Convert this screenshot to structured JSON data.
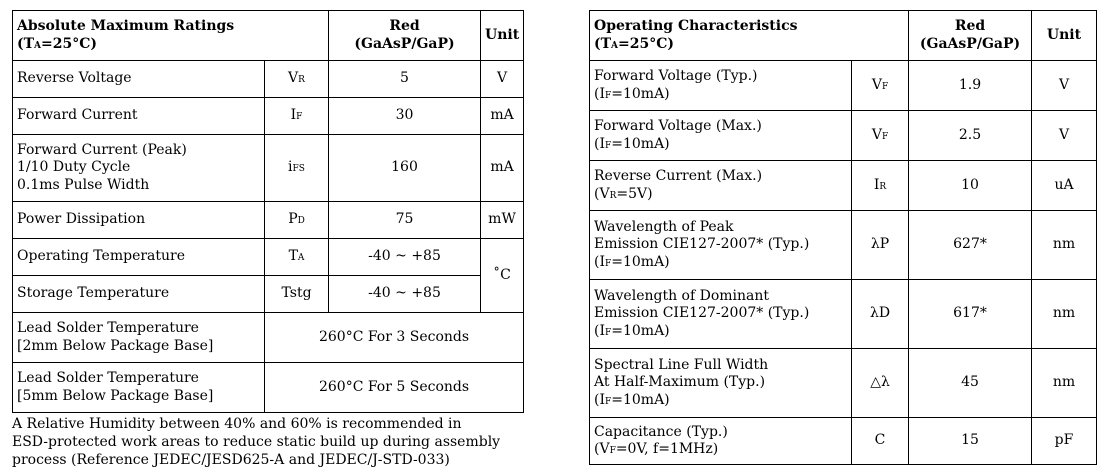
{
  "left": {
    "title": "Absolute Maximum Ratings",
    "cond_pre": "(T",
    "cond_sub": "A",
    "cond_post": "=25°C)",
    "col_red_1": "Red",
    "col_red_2": "(GaAsP/GaP)",
    "col_unit": "Unit",
    "rows": [
      {
        "param": "Reverse Voltage",
        "sym": "V",
        "sym_sub": "R",
        "value": "5",
        "unit": "V"
      },
      {
        "param": "Forward Current",
        "sym": "I",
        "sym_sub": "F",
        "value": "30",
        "unit": "mA"
      },
      {
        "param_1": "Forward Current (Peak)",
        "param_2": "1/10 Duty Cycle",
        "param_3": "0.1ms Pulse Width",
        "sym": "i",
        "sym_sub": "FS",
        "value": "160",
        "unit": "mA"
      },
      {
        "param": "Power Dissipation",
        "sym": "P",
        "sym_sub": "D",
        "value": "75",
        "unit": "mW"
      },
      {
        "param": "Operating Temperature",
        "sym": "T",
        "sym_sub": "A",
        "value": "-40 ~ +85"
      },
      {
        "param": "Storage Temperature",
        "sym": "Tstg",
        "value": "-40 ~ +85"
      },
      {
        "param_1": "Lead Solder Temperature",
        "param_2": "[2mm Below Package Base]",
        "value": "260°C For 3 Seconds"
      },
      {
        "param_1": "Lead Solder Temperature",
        "param_2": "[5mm Below Package Base]",
        "value": "260°C For 5 Seconds"
      }
    ],
    "temp_unit": "˚C"
  },
  "note": {
    "line_1": "A Relative Humidity between 40% and 60% is recommended in",
    "line_2": "ESD-protected work areas to reduce static build up during assembly",
    "line_3": "process (Reference JEDEC/JESD625-A and JEDEC/J-STD-033)"
  },
  "right": {
    "title": "Operating Characteristics",
    "cond_pre": "(T",
    "cond_sub": "A",
    "cond_post": "=25°C)",
    "col_red_1": "Red",
    "col_red_2": "(GaAsP/GaP)",
    "col_unit": "Unit",
    "rows": [
      {
        "param_1": "Forward Voltage (Typ.)",
        "cond_pre": "(I",
        "cond_sub": "F",
        "cond_post": "=10mA)",
        "sym": "V",
        "sym_sub": "F",
        "value": "1.9",
        "unit": "V"
      },
      {
        "param_1": "Forward Voltage (Max.)",
        "cond_pre": "(I",
        "cond_sub": "F",
        "cond_post": "=10mA)",
        "sym": "V",
        "sym_sub": "F",
        "value": "2.5",
        "unit": "V"
      },
      {
        "param_1": "Reverse Current (Max.)",
        "cond_pre": "(V",
        "cond_sub": "R",
        "cond_post": "=5V)",
        "sym": "I",
        "sym_sub": "R",
        "value": "10",
        "unit": "uA"
      },
      {
        "param_1": "Wavelength of Peak",
        "param_2": "Emission  CIE127-2007* (Typ.)",
        "cond_pre": "(I",
        "cond_sub": "F",
        "cond_post": "=10mA)",
        "sym": "λP",
        "value": "627*",
        "unit": "nm"
      },
      {
        "param_1": "Wavelength of Dominant",
        "param_2": "Emission  CIE127-2007* (Typ.)",
        "cond_pre": "(I",
        "cond_sub": "F",
        "cond_post": "=10mA)",
        "sym": "λD",
        "value": "617*",
        "unit": "nm"
      },
      {
        "param_1": "Spectral Line Full Width",
        "param_2": "At Half-Maximum (Typ.)",
        "cond_pre": "(I",
        "cond_sub": "F",
        "cond_post": "=10mA)",
        "sym": "△λ",
        "value": "45",
        "unit": "nm"
      },
      {
        "param_1": "Capacitance (Typ.)",
        "cond_pre": "(V",
        "cond_sub": "F",
        "cond_post": "=0V, f=1MHz)",
        "sym": "C",
        "value": "15",
        "unit": "pF"
      }
    ]
  }
}
